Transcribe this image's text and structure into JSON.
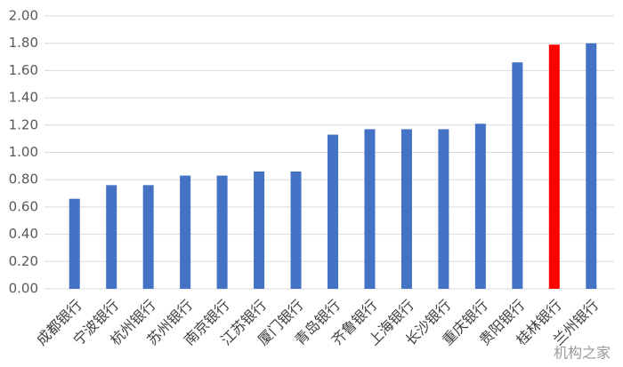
{
  "chart_data": {
    "type": "bar",
    "categories": [
      "成都银行",
      "宁波银行",
      "杭州银行",
      "苏州银行",
      "南京银行",
      "江苏银行",
      "厦门银行",
      "青岛银行",
      "齐鲁银行",
      "上海银行",
      "长沙银行",
      "重庆银行",
      "贵阳银行",
      "桂林银行",
      "兰州银行"
    ],
    "values": [
      0.66,
      0.76,
      0.76,
      0.83,
      0.83,
      0.86,
      0.86,
      1.13,
      1.17,
      1.17,
      1.17,
      1.21,
      1.66,
      1.79,
      1.8
    ],
    "colors": [
      "#4472c4",
      "#4472c4",
      "#4472c4",
      "#4472c4",
      "#4472c4",
      "#4472c4",
      "#4472c4",
      "#4472c4",
      "#4472c4",
      "#4472c4",
      "#4472c4",
      "#4472c4",
      "#4472c4",
      "#ff0000",
      "#4472c4"
    ],
    "ylim": [
      0,
      2
    ],
    "yticks": [
      {
        "value": 0,
        "label": "0.00"
      },
      {
        "value": 0.2,
        "label": "0.20"
      },
      {
        "value": 0.4,
        "label": "0.40"
      },
      {
        "value": 0.6,
        "label": "0.60"
      },
      {
        "value": 0.8,
        "label": "0.80"
      },
      {
        "value": 1.0,
        "label": "1.00"
      },
      {
        "value": 1.2,
        "label": "1.20"
      },
      {
        "value": 1.4,
        "label": "1.40"
      },
      {
        "value": 1.6,
        "label": "1.60"
      },
      {
        "value": 1.8,
        "label": "1.80"
      },
      {
        "value": 2.0,
        "label": "2.00"
      }
    ],
    "grid": true,
    "watermark": "机构之家"
  }
}
